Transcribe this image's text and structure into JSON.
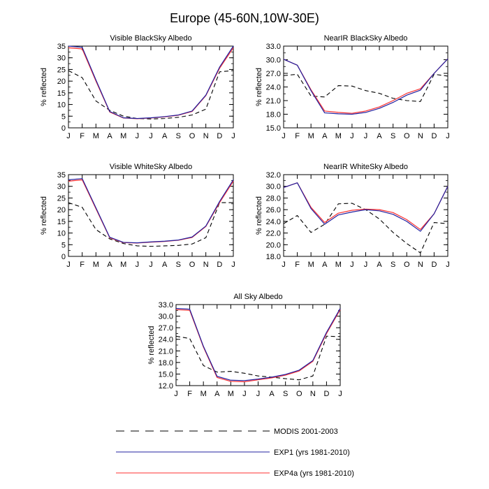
{
  "figure_title": "Europe (45-60N,10W-30E)",
  "colors": {
    "modis": "#000000",
    "exp1": "#2020a0",
    "exp4a": "#ff3030"
  },
  "legend": {
    "items": [
      {
        "key": "modis",
        "label": "MODIS 2001-2003"
      },
      {
        "key": "exp1",
        "label": "EXP1 (yrs 1981-2010)"
      },
      {
        "key": "exp4a",
        "label": "EXP4a (yrs 1981-2010)"
      }
    ]
  },
  "chart_data": [
    {
      "type": "line",
      "title": "Visible BlackSky Albedo",
      "ylabel": "% reflected",
      "categories": [
        "J",
        "F",
        "M",
        "A",
        "M",
        "J",
        "J",
        "A",
        "S",
        "O",
        "N",
        "D",
        "J"
      ],
      "ylim": [
        0,
        35
      ],
      "yticks": [
        0,
        5,
        10,
        15,
        20,
        25,
        30,
        35
      ],
      "ytick_labels": [
        "0",
        "5",
        "10",
        "15",
        "20",
        "25",
        "30",
        "35"
      ],
      "series": [
        {
          "key": "modis",
          "values": [
            24.5,
            21.5,
            11.5,
            7.5,
            5.0,
            4.0,
            3.8,
            4.0,
            4.5,
            5.5,
            8.0,
            24.0,
            24.5
          ]
        },
        {
          "key": "exp1",
          "values": [
            35.0,
            34.5,
            20.5,
            7.0,
            4.3,
            4.0,
            4.3,
            4.8,
            5.5,
            7.2,
            14.0,
            26.0,
            35.0
          ]
        },
        {
          "key": "exp4a",
          "values": [
            34.3,
            33.8,
            20.0,
            6.8,
            4.2,
            3.9,
            4.2,
            4.7,
            5.4,
            7.0,
            13.8,
            25.5,
            34.3
          ]
        }
      ]
    },
    {
      "type": "line",
      "title": "NearIR BlackSky Albedo",
      "ylabel": "% reflected",
      "categories": [
        "J",
        "F",
        "M",
        "A",
        "M",
        "J",
        "J",
        "A",
        "S",
        "O",
        "N",
        "D",
        "J"
      ],
      "ylim": [
        15,
        33
      ],
      "yticks": [
        15,
        18,
        21,
        24,
        27,
        30,
        33
      ],
      "ytick_labels": [
        "15.0",
        "18.0",
        "21.0",
        "24.0",
        "27.0",
        "30.0",
        "33.0"
      ],
      "series": [
        {
          "key": "modis",
          "values": [
            26.5,
            26.8,
            22.0,
            21.8,
            24.3,
            24.2,
            23.2,
            22.6,
            21.5,
            21.0,
            20.8,
            26.8,
            26.4
          ]
        },
        {
          "key": "exp1",
          "values": [
            30.1,
            28.8,
            23.2,
            18.3,
            18.1,
            18.0,
            18.4,
            19.3,
            20.6,
            22.2,
            23.3,
            27.0,
            30.2
          ]
        },
        {
          "key": "exp4a",
          "values": [
            30.1,
            28.8,
            23.4,
            18.7,
            18.4,
            18.2,
            18.7,
            19.6,
            21.0,
            22.6,
            23.6,
            27.0,
            30.2
          ]
        }
      ]
    },
    {
      "type": "line",
      "title": "Visible WhiteSky Albedo",
      "ylabel": "% reflected",
      "categories": [
        "J",
        "F",
        "M",
        "A",
        "M",
        "J",
        "J",
        "A",
        "S",
        "O",
        "N",
        "D",
        "J"
      ],
      "ylim": [
        0,
        35
      ],
      "yticks": [
        0,
        5,
        10,
        15,
        20,
        25,
        30,
        35
      ],
      "ytick_labels": [
        "0",
        "5",
        "10",
        "15",
        "20",
        "25",
        "30",
        "35"
      ],
      "series": [
        {
          "key": "modis",
          "values": [
            23.0,
            21.0,
            11.5,
            7.5,
            5.5,
            4.5,
            4.3,
            4.5,
            4.7,
            5.3,
            8.0,
            23.0,
            23.0
          ]
        },
        {
          "key": "exp1",
          "values": [
            32.8,
            33.3,
            20.8,
            8.2,
            6.0,
            5.8,
            6.2,
            6.5,
            7.0,
            8.3,
            13.0,
            23.5,
            32.8
          ]
        },
        {
          "key": "exp4a",
          "values": [
            32.2,
            32.8,
            20.4,
            8.0,
            5.9,
            5.7,
            6.1,
            6.4,
            6.9,
            8.1,
            12.8,
            23.0,
            32.2
          ]
        }
      ]
    },
    {
      "type": "line",
      "title": "NearIR WhiteSky Albedo",
      "ylabel": "% reflected",
      "categories": [
        "J",
        "F",
        "M",
        "A",
        "M",
        "J",
        "J",
        "A",
        "S",
        "O",
        "N",
        "D",
        "J"
      ],
      "ylim": [
        18,
        32
      ],
      "yticks": [
        18,
        20,
        22,
        24,
        26,
        28,
        30,
        32
      ],
      "ytick_labels": [
        "18.0",
        "20.0",
        "22.0",
        "24.0",
        "26.0",
        "28.0",
        "30.0",
        "32.0"
      ],
      "series": [
        {
          "key": "modis",
          "values": [
            23.6,
            25.0,
            22.1,
            23.5,
            27.0,
            27.1,
            26.0,
            24.4,
            22.1,
            20.2,
            18.6,
            23.8,
            23.6
          ]
        },
        {
          "key": "exp1",
          "values": [
            29.8,
            30.6,
            26.2,
            23.5,
            25.1,
            25.6,
            26.0,
            25.8,
            25.2,
            24.0,
            22.3,
            25.3,
            30.0
          ]
        },
        {
          "key": "exp4a",
          "values": [
            29.8,
            30.6,
            26.4,
            23.8,
            25.4,
            25.9,
            26.1,
            26.0,
            25.5,
            24.3,
            22.6,
            25.3,
            30.0
          ]
        }
      ]
    },
    {
      "type": "line",
      "title": "All Sky Albedo",
      "ylabel": "% reflected",
      "categories": [
        "J",
        "F",
        "M",
        "A",
        "M",
        "J",
        "J",
        "A",
        "S",
        "O",
        "N",
        "D",
        "J"
      ],
      "ylim": [
        12,
        33
      ],
      "yticks": [
        12,
        15,
        18,
        21,
        24,
        27,
        30,
        33
      ],
      "ytick_labels": [
        "12.0",
        "15.0",
        "18.0",
        "21.0",
        "24.0",
        "27.0",
        "30.0",
        "33.0"
      ],
      "series": [
        {
          "key": "modis",
          "values": [
            24.8,
            24.2,
            17.2,
            15.5,
            15.7,
            15.2,
            14.5,
            14.2,
            13.8,
            13.5,
            14.5,
            24.8,
            24.7
          ]
        },
        {
          "key": "exp1",
          "values": [
            32.0,
            31.8,
            22.2,
            14.4,
            13.4,
            13.3,
            13.7,
            14.2,
            14.9,
            16.0,
            18.5,
            25.8,
            32.0
          ]
        },
        {
          "key": "exp4a",
          "values": [
            31.7,
            31.5,
            22.0,
            14.1,
            13.1,
            13.0,
            13.5,
            14.0,
            14.7,
            15.8,
            18.3,
            25.5,
            31.7
          ]
        }
      ]
    }
  ]
}
